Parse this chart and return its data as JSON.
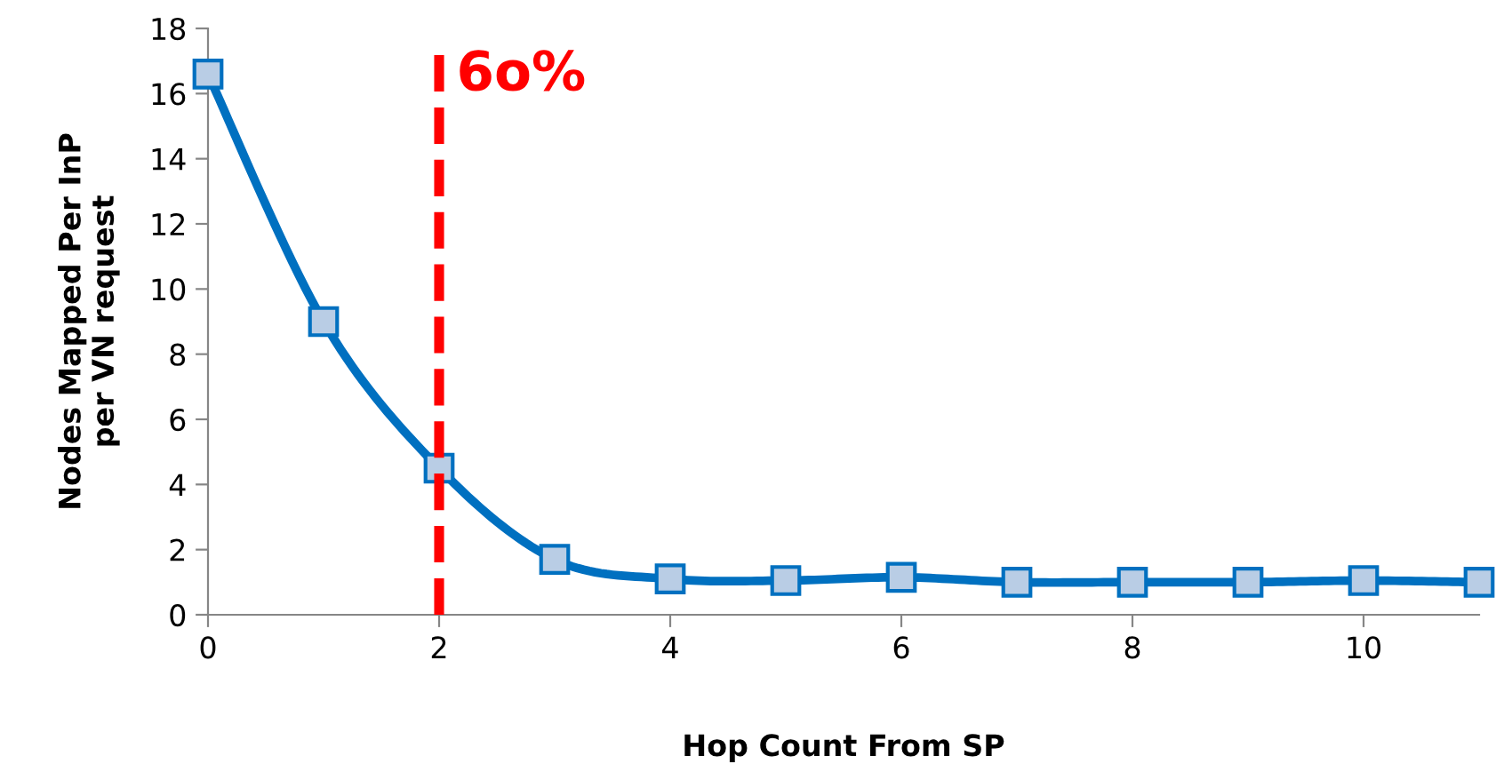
{
  "chart_data": {
    "type": "line",
    "xlabel": "Hop Count From SP",
    "ylabel": "Nodes Mapped Per InP\nper VN request",
    "x": [
      0,
      1,
      2,
      3,
      4,
      5,
      6,
      7,
      8,
      9,
      10,
      11
    ],
    "series": [
      {
        "color": "#0070c0",
        "values": [
          16.6,
          9.0,
          4.5,
          1.7,
          1.1,
          1.05,
          1.15,
          1.0,
          1.0,
          1.0,
          1.05,
          1.0
        ]
      }
    ],
    "xlim": [
      0,
      11
    ],
    "xticks": [
      0,
      2,
      4,
      6,
      8,
      10
    ],
    "ylim": [
      0,
      18
    ],
    "yticks": [
      0,
      2,
      4,
      6,
      8,
      10,
      12,
      14,
      16,
      18
    ],
    "grid": false,
    "legend": false,
    "marker": "square",
    "line_style": "solid",
    "ref_lines": [
      {
        "axis": "x",
        "value": 2,
        "label": "6o%",
        "color": "#ff0000",
        "line_style": "dashed"
      }
    ]
  }
}
